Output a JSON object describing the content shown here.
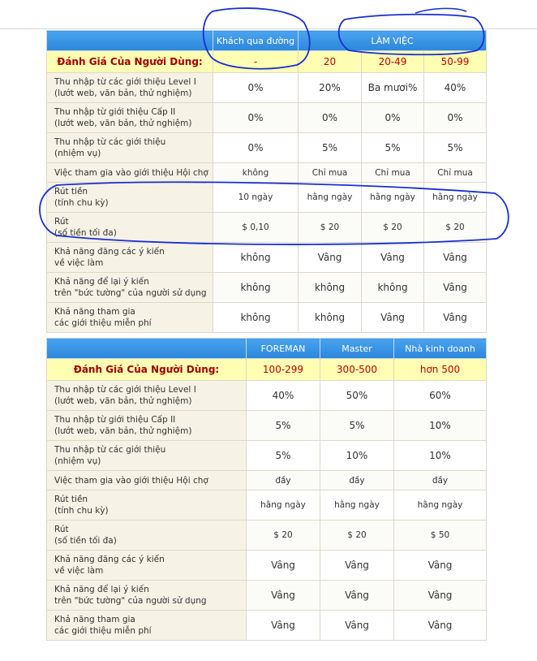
{
  "rating_label": "Đánh Giá Của Người Dùng:",
  "table1": {
    "headers": [
      "Khách qua đường",
      "LÀM VIỆC"
    ],
    "ratings": [
      "-",
      "20",
      "20-49",
      "50-99"
    ],
    "rows": [
      {
        "label1": "Thu nhập từ các giới thiệu Level I",
        "label2": "(lướt web, văn bản, thử nghiệm)",
        "values": [
          "0%",
          "20%",
          "Ba mươi%",
          "40%"
        ]
      },
      {
        "label1": "Thu nhập từ giới thiệu Cấp II",
        "label2": "(lướt web, văn bản, thử nghiệm)",
        "values": [
          "0%",
          "0%",
          "0%",
          "0%"
        ]
      },
      {
        "label1": "Thu nhập từ các giới thiệu",
        "label2": "(nhiệm vụ)",
        "values": [
          "0%",
          "5%",
          "5%",
          "5%"
        ]
      },
      {
        "label1": "Việc tham gia vào giới thiệu Hội chợ",
        "label2": "",
        "values": [
          "không",
          "Chỉ mua",
          "Chỉ mua",
          "Chỉ mua"
        ]
      },
      {
        "label1": "Rút tiền",
        "label2": "(tính chu kỳ)",
        "values": [
          "10 ngày",
          "hằng ngày",
          "hằng ngày",
          "hằng ngày"
        ]
      },
      {
        "label1": "Rút",
        "label2": "(số tiền tối đa)",
        "values": [
          "$ 0,10",
          "$ 20",
          "$ 20",
          "$ 20"
        ]
      },
      {
        "label1": "Khả năng đăng các ý kiến",
        "label2": "về việc làm",
        "values": [
          "không",
          "Vâng",
          "Vâng",
          "Vâng"
        ]
      },
      {
        "label1": "Khả năng để lại ý kiến",
        "label2": "trên \"bức tường\" của người sử dụng",
        "values": [
          "không",
          "không",
          "không",
          "Vâng"
        ]
      },
      {
        "label1": "Khả năng tham gia",
        "label2": "các giới thiệu miễn phí",
        "values": [
          "không",
          "không",
          "Vâng",
          "Vâng"
        ]
      }
    ]
  },
  "table2": {
    "headers": [
      "FOREMAN",
      "Master",
      "Nhà kinh doanh"
    ],
    "ratings": [
      "100-299",
      "300-500",
      "hơn 500"
    ],
    "rows": [
      {
        "label1": "Thu nhập từ các giới thiệu Level I",
        "label2": "(lướt web, văn bản, thử nghiệm)",
        "values": [
          "40%",
          "50%",
          "60%"
        ]
      },
      {
        "label1": "Thu nhập từ giới thiệu Cấp II",
        "label2": "(lướt web, văn bản, thử nghiệm)",
        "values": [
          "5%",
          "5%",
          "10%"
        ]
      },
      {
        "label1": "Thu nhập từ các giới thiệu",
        "label2": "(nhiệm vụ)",
        "values": [
          "5%",
          "10%",
          "10%"
        ]
      },
      {
        "label1": "Việc tham gia vào giới thiệu Hội chợ",
        "label2": "",
        "values": [
          "đầy",
          "đầy",
          "đầy"
        ]
      },
      {
        "label1": "Rút tiền",
        "label2": "(tính chu kỳ)",
        "values": [
          "hằng ngày",
          "hằng ngày",
          "hằng ngày"
        ]
      },
      {
        "label1": "Rút",
        "label2": "(số tiền tối đa)",
        "values": [
          "$ 20",
          "$ 20",
          "$ 50"
        ]
      },
      {
        "label1": "Khả năng đăng các ý kiến",
        "label2": "về việc làm",
        "values": [
          "Vâng",
          "Vâng",
          "Vâng"
        ]
      },
      {
        "label1": "Khả năng để lại ý kiến",
        "label2": "trên \"bức tường\" của người sử dụng",
        "values": [
          "Vâng",
          "Vâng",
          "Vâng"
        ]
      },
      {
        "label1": "Khả năng tham gia",
        "label2": "các giới thiệu miễn phí",
        "values": [
          "Vâng",
          "Vâng",
          "Vâng"
        ]
      }
    ]
  },
  "annotation_color": "#1a2fd0"
}
